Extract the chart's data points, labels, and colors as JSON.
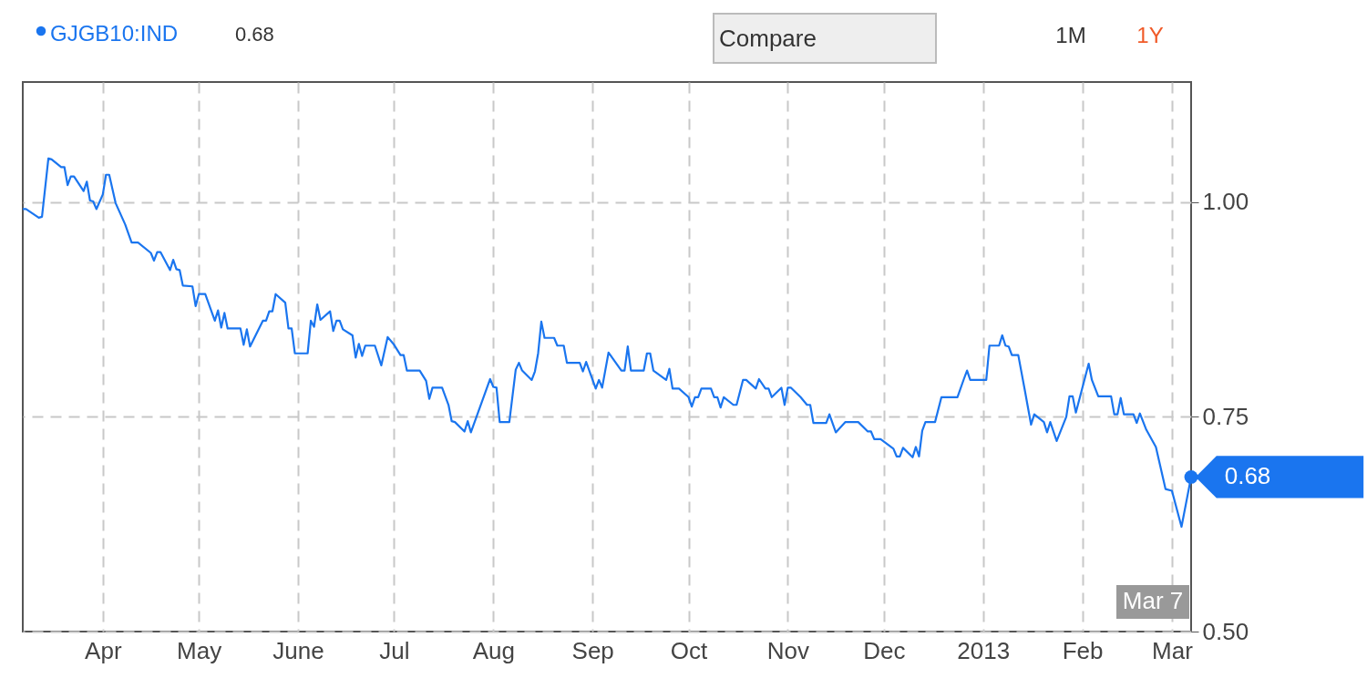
{
  "chart_data": {
    "type": "line",
    "x": [
      "2012-03-07",
      "2012-03-08",
      "2012-03-12",
      "2012-03-13",
      "2012-03-15",
      "2012-03-16",
      "2012-03-19",
      "2012-03-20",
      "2012-03-21",
      "2012-03-22",
      "2012-03-23",
      "2012-03-26",
      "2012-03-27",
      "2012-03-28",
      "2012-03-29",
      "2012-03-30",
      "2012-04-01",
      "2012-04-02",
      "2012-04-03",
      "2012-04-05",
      "2012-04-08",
      "2012-04-10",
      "2012-04-12",
      "2012-04-16",
      "2012-04-17",
      "2012-04-18",
      "2012-04-19",
      "2012-04-22",
      "2012-04-23",
      "2012-04-24",
      "2012-04-25",
      "2012-04-26",
      "2012-04-29",
      "2012-04-30",
      "2012-05-01",
      "2012-05-03",
      "2012-05-06",
      "2012-05-07",
      "2012-05-08",
      "2012-05-09",
      "2012-05-10",
      "2012-05-14",
      "2012-05-15",
      "2012-05-16",
      "2012-05-17",
      "2012-05-21",
      "2012-05-22",
      "2012-05-23",
      "2012-05-24",
      "2012-05-25",
      "2012-05-28",
      "2012-05-29",
      "2012-05-30",
      "2012-05-31",
      "2012-06-04",
      "2012-06-05",
      "2012-06-06",
      "2012-06-07",
      "2012-06-08",
      "2012-06-11",
      "2012-06-12",
      "2012-06-13",
      "2012-06-14",
      "2012-06-15",
      "2012-06-18",
      "2012-06-19",
      "2012-06-20",
      "2012-06-21",
      "2012-06-22",
      "2012-06-25",
      "2012-06-27",
      "2012-06-29",
      "2012-07-01",
      "2012-07-03",
      "2012-07-04",
      "2012-07-05",
      "2012-07-09",
      "2012-07-11",
      "2012-07-12",
      "2012-07-13",
      "2012-07-16",
      "2012-07-18",
      "2012-07-19",
      "2012-07-20",
      "2012-07-23",
      "2012-07-24",
      "2012-07-25",
      "2012-07-31",
      "2012-08-01",
      "2012-08-02",
      "2012-08-03",
      "2012-08-06",
      "2012-08-08",
      "2012-08-09",
      "2012-08-10",
      "2012-08-13",
      "2012-08-14",
      "2012-08-15",
      "2012-08-16",
      "2012-08-17",
      "2012-08-20",
      "2012-08-21",
      "2012-08-23",
      "2012-08-24",
      "2012-08-28",
      "2012-08-29",
      "2012-08-30",
      "2012-09-02",
      "2012-09-03",
      "2012-09-04",
      "2012-09-06",
      "2012-09-10",
      "2012-09-11",
      "2012-09-12",
      "2012-09-13",
      "2012-09-17",
      "2012-09-18",
      "2012-09-19",
      "2012-09-20",
      "2012-09-24",
      "2012-09-25",
      "2012-09-26",
      "2012-09-28",
      "2012-10-01",
      "2012-10-02",
      "2012-10-03",
      "2012-10-04",
      "2012-10-05",
      "2012-10-08",
      "2012-10-09",
      "2012-10-10",
      "2012-10-11",
      "2012-10-12",
      "2012-10-15",
      "2012-10-16",
      "2012-10-18",
      "2012-10-19",
      "2012-10-22",
      "2012-10-23",
      "2012-10-25",
      "2012-10-26",
      "2012-10-27",
      "2012-10-30",
      "2012-10-31",
      "2012-11-01",
      "2012-11-02",
      "2012-11-05",
      "2012-11-07",
      "2012-11-08",
      "2012-11-09",
      "2012-11-13",
      "2012-11-14",
      "2012-11-16",
      "2012-11-19",
      "2012-11-23",
      "2012-11-26",
      "2012-11-27",
      "2012-11-28",
      "2012-11-30",
      "2012-12-04",
      "2012-12-05",
      "2012-12-06",
      "2012-12-07",
      "2012-12-10",
      "2012-12-11",
      "2012-12-12",
      "2012-12-13",
      "2012-12-14",
      "2012-12-17",
      "2012-12-19",
      "2012-12-24",
      "2012-12-26",
      "2012-12-27",
      "2012-12-28",
      "2013-01-02",
      "2013-01-03",
      "2013-01-06",
      "2013-01-07",
      "2013-01-08",
      "2013-01-09",
      "2013-01-10",
      "2013-01-12",
      "2013-01-14",
      "2013-01-16",
      "2013-01-17",
      "2013-01-20",
      "2013-01-21",
      "2013-01-22",
      "2013-01-24",
      "2013-01-27",
      "2013-01-28",
      "2013-01-29",
      "2013-01-30",
      "2013-02-03",
      "2013-02-04",
      "2013-02-06",
      "2013-02-10",
      "2013-02-11",
      "2013-02-12",
      "2013-02-13",
      "2013-02-14",
      "2013-02-17",
      "2013-02-18",
      "2013-02-19",
      "2013-02-21",
      "2013-02-24",
      "2013-02-27",
      "2013-03-01",
      "2013-03-04",
      "2013-03-07"
    ],
    "series": [
      {
        "name": "GJGB10:IND",
        "color": "#1a75ef",
        "values": [
          0.992,
          0.992,
          0.982,
          0.983,
          1.051,
          1.05,
          1.041,
          1.041,
          1.02,
          1.03,
          1.03,
          1.013,
          1.024,
          1.002,
          1.001,
          0.992,
          1.009,
          1.032,
          1.032,
          0.999,
          0.974,
          0.953,
          0.953,
          0.941,
          0.932,
          0.942,
          0.942,
          0.921,
          0.933,
          0.922,
          0.921,
          0.903,
          0.902,
          0.879,
          0.893,
          0.893,
          0.862,
          0.874,
          0.854,
          0.871,
          0.853,
          0.853,
          0.834,
          0.852,
          0.832,
          0.862,
          0.862,
          0.873,
          0.873,
          0.893,
          0.883,
          0.853,
          0.853,
          0.824,
          0.824,
          0.862,
          0.855,
          0.881,
          0.863,
          0.873,
          0.85,
          0.862,
          0.862,
          0.852,
          0.845,
          0.819,
          0.835,
          0.821,
          0.833,
          0.833,
          0.81,
          0.843,
          0.834,
          0.822,
          0.822,
          0.804,
          0.804,
          0.792,
          0.771,
          0.784,
          0.784,
          0.764,
          0.745,
          0.744,
          0.733,
          0.745,
          0.732,
          0.794,
          0.785,
          0.784,
          0.744,
          0.744,
          0.805,
          0.813,
          0.804,
          0.793,
          0.803,
          0.824,
          0.861,
          0.842,
          0.842,
          0.833,
          0.833,
          0.813,
          0.813,
          0.803,
          0.814,
          0.783,
          0.793,
          0.784,
          0.825,
          0.804,
          0.804,
          0.832,
          0.804,
          0.804,
          0.824,
          0.824,
          0.804,
          0.793,
          0.806,
          0.783,
          0.783,
          0.773,
          0.762,
          0.773,
          0.773,
          0.783,
          0.783,
          0.773,
          0.773,
          0.761,
          0.773,
          0.764,
          0.764,
          0.793,
          0.793,
          0.783,
          0.794,
          0.783,
          0.783,
          0.773,
          0.784,
          0.764,
          0.784,
          0.784,
          0.773,
          0.764,
          0.764,
          0.743,
          0.743,
          0.753,
          0.732,
          0.744,
          0.744,
          0.733,
          0.733,
          0.724,
          0.724,
          0.713,
          0.704,
          0.704,
          0.714,
          0.703,
          0.715,
          0.704,
          0.734,
          0.744,
          0.744,
          0.773,
          0.773,
          0.794,
          0.804,
          0.793,
          0.793,
          0.833,
          0.833,
          0.845,
          0.833,
          0.832,
          0.822,
          0.822,
          0.782,
          0.741,
          0.753,
          0.744,
          0.732,
          0.744,
          0.722,
          0.75,
          0.774,
          0.774,
          0.755,
          0.812,
          0.793,
          0.774,
          0.774,
          0.753,
          0.753,
          0.772,
          0.753,
          0.753,
          0.743,
          0.754,
          0.735,
          0.715,
          0.666,
          0.664,
          0.622,
          0.68
        ]
      }
    ],
    "xlim": [
      "2012-03-07",
      "2013-03-07"
    ],
    "xticks": [
      {
        "value": "2012-04-01",
        "label": "Apr"
      },
      {
        "value": "2012-05-01",
        "label": "May"
      },
      {
        "value": "2012-06-01",
        "label": "June"
      },
      {
        "value": "2012-07-01",
        "label": "Jul"
      },
      {
        "value": "2012-08-01",
        "label": "Aug"
      },
      {
        "value": "2012-09-01",
        "label": "Sep"
      },
      {
        "value": "2012-10-01",
        "label": "Oct"
      },
      {
        "value": "2012-11-01",
        "label": "Nov"
      },
      {
        "value": "2012-12-01",
        "label": "Dec"
      },
      {
        "value": "2013-01-01",
        "label": "2013"
      },
      {
        "value": "2013-02-01",
        "label": "Feb"
      },
      {
        "value": "2013-03-01",
        "label": "Mar"
      }
    ],
    "ylim": [
      0.5,
      1.14
    ],
    "yticks": [
      {
        "value": 0.5,
        "label": "0.50"
      },
      {
        "value": 0.75,
        "label": "0.75"
      },
      {
        "value": 1.0,
        "label": "1.00"
      }
    ],
    "grid": true,
    "legend": "top left",
    "annotations": [
      "0.68",
      "Compare",
      "1M",
      "1Y",
      "Mar 7",
      {
        "text": "0.68",
        "x": "2013-03-07",
        "y": 0.68
      }
    ]
  }
}
